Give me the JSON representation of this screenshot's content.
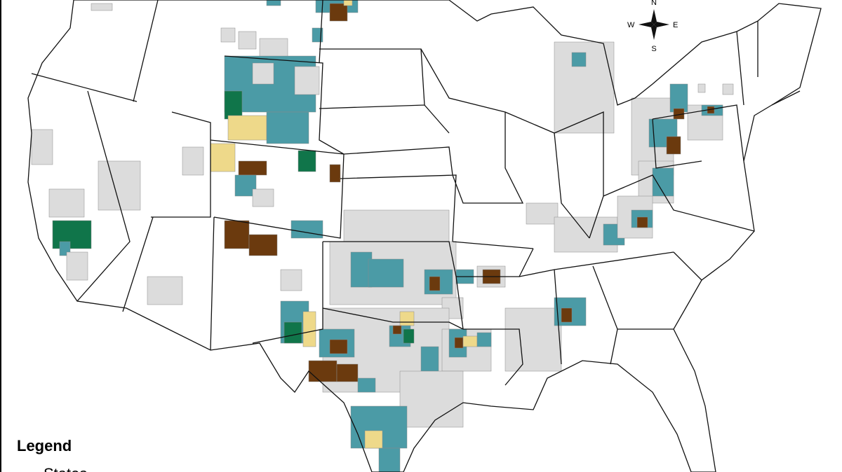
{
  "compass": {
    "north": "N",
    "south": "S",
    "east": "E",
    "west": "W"
  },
  "legend": {
    "title": "Legend",
    "items": [
      "States"
    ]
  }
}
